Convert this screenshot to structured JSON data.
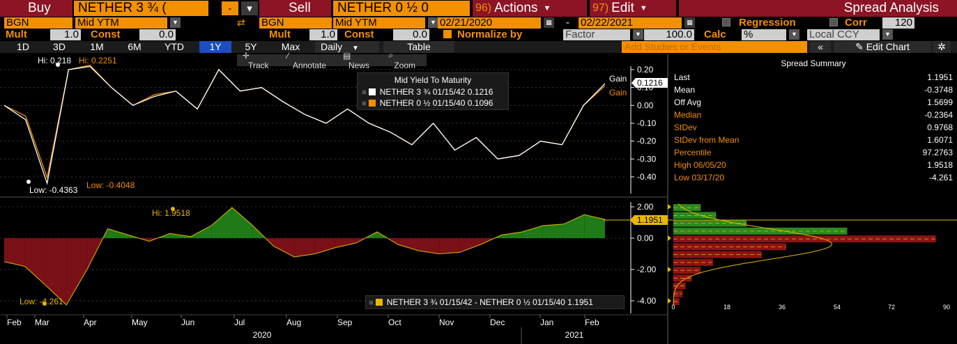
{
  "toolbar": {
    "buy_label": "Buy",
    "buy_security": "NETHER 3 ¾ (",
    "buy_side_btn": "-",
    "sell_label": "Sell",
    "sell_security": "NETHER 0 ½ 0",
    "actions_num": "96)",
    "actions_label": "Actions",
    "edit_num": "97)",
    "edit_label": "Edit",
    "title": "Spread Analysis"
  },
  "leg1": {
    "source": "BGN",
    "field": "Mid YTM",
    "mult_label": "Mult",
    "mult_value": "1.0",
    "const_label": "Const",
    "const_value": "0.0"
  },
  "leg2": {
    "source": "BGN",
    "field": "Mid YTM",
    "mult_label": "Mult",
    "mult_value": "1.0",
    "const_label": "Const",
    "const_value": "0.0"
  },
  "dates": {
    "start": "02/21/2020",
    "separator": "-",
    "end": "02/22/2021"
  },
  "options": {
    "regression_label": "Regression",
    "corr_label": "Corr",
    "corr_value": "120",
    "normalize_label": "Normalize by",
    "normalize_value": "Factor",
    "factor_value": "100.0",
    "calc_label": "Calc",
    "calc_value": "%",
    "ccy_value": "Local CCY"
  },
  "periods": [
    "1D",
    "3D",
    "1M",
    "6M",
    "YTD",
    "1Y",
    "5Y",
    "Max"
  ],
  "active_period": "1Y",
  "frequency": "Daily",
  "table_label": "Table",
  "add_studies_placeholder": "Add Studies or Events",
  "edit_chart_label": "Edit Chart",
  "tools": {
    "track": "Track",
    "annotate": "Annotate",
    "news": "News",
    "zoom": "Zoom"
  },
  "upper_legend": {
    "title": "Mid Yield To Maturity",
    "rows": [
      {
        "name": "NETHER 3 ¾ 01/15/42",
        "value": "0.1216",
        "color": "#ffffff"
      },
      {
        "name": "NETHER 0 ½ 01/15/40",
        "value": "0.1096",
        "color": "#f39000"
      }
    ]
  },
  "upper_annotations": {
    "hi_white": "Hi: 0.218",
    "hi_orange": "Hi: 0.2251",
    "low_white": "Low: -0.4363",
    "low_orange": "Low: -0.4048",
    "gain1": "Gain",
    "gain2": "Gain",
    "last_value": "0.1216"
  },
  "lower_annotations": {
    "hi": "Hi: 1.9518",
    "low": "Low: -4.261",
    "last_value": "1.1951",
    "legend": "NETHER 3 ¾ 01/15/42 - NETHER 0 ½ 01/15/40 1.1951"
  },
  "summary": {
    "title": "Spread Summary",
    "rows": [
      {
        "key": "Last",
        "value": "1.1951",
        "orange": false
      },
      {
        "key": "Mean",
        "value": "-0.3748",
        "orange": false
      },
      {
        "key": "Off Avg",
        "value": "1.5699",
        "orange": false
      },
      {
        "key": "Median",
        "value": "-0.2364",
        "orange": true
      },
      {
        "key": "StDev",
        "value": "0.9768",
        "orange": true
      },
      {
        "key": "StDev from Mean",
        "value": "1.6071",
        "orange": true
      },
      {
        "key": "Percentile",
        "value": "97.2763",
        "orange": true
      },
      {
        "key": "High 06/05/20",
        "value": "1.9518",
        "orange": true
      },
      {
        "key": "Low 03/17/20",
        "value": "-4.261",
        "orange": true
      }
    ]
  },
  "chart_data": [
    {
      "type": "line",
      "title": "Mid Yield To Maturity",
      "x": [
        "Feb",
        "Feb",
        "Mar",
        "Mar",
        "Mar",
        "Mar",
        "Apr",
        "Apr",
        "May",
        "May",
        "Jun",
        "Jun",
        "Jun",
        "Jul",
        "Jul",
        "Aug",
        "Aug",
        "Sep",
        "Sep",
        "Oct",
        "Oct",
        "Nov",
        "Nov",
        "Dec",
        "Dec",
        "Jan",
        "Jan",
        "Feb",
        "Feb"
      ],
      "series": [
        {
          "name": "NETHER 3 ¾ 01/15/42",
          "color": "#ffffff",
          "values": [
            0.0,
            -0.08,
            -0.4363,
            0.2,
            0.218,
            0.1,
            0.0,
            0.05,
            0.08,
            -0.02,
            0.2,
            0.08,
            0.1,
            0.02,
            -0.05,
            -0.1,
            -0.02,
            -0.1,
            -0.15,
            -0.22,
            -0.1,
            -0.25,
            -0.18,
            -0.3,
            -0.28,
            -0.2,
            -0.22,
            0.0,
            0.1216
          ]
        },
        {
          "name": "NETHER 0 ½ 01/15/40",
          "color": "#f39000",
          "values": [
            0.0,
            -0.06,
            -0.4048,
            0.2,
            0.2251,
            0.1,
            0.0,
            0.06,
            0.08,
            -0.02,
            0.2,
            0.08,
            0.1,
            0.02,
            -0.05,
            -0.1,
            -0.02,
            -0.1,
            -0.15,
            -0.22,
            -0.1,
            -0.25,
            -0.18,
            -0.3,
            -0.28,
            -0.2,
            -0.22,
            0.0,
            0.1096
          ]
        }
      ],
      "ylim": [
        -0.48,
        0.24
      ],
      "yticks": [
        "0.20",
        "0.10",
        "0.00",
        "-0.10",
        "-0.20",
        "-0.30",
        "-0.40"
      ]
    },
    {
      "type": "area",
      "series": [
        {
          "name": "NETHER 3 ¾ 01/15/42 - NETHER 0 ½ 01/15/40",
          "values": [
            -1.5,
            -1.8,
            -3.0,
            -4.261,
            -2.0,
            0.6,
            0.2,
            -0.2,
            0.3,
            0.1,
            0.8,
            1.9518,
            0.8,
            -0.5,
            -1.2,
            -1.0,
            -0.6,
            -0.3,
            0.4,
            -0.4,
            -0.8,
            -1.0,
            -0.9,
            -0.4,
            0.2,
            0.4,
            0.8,
            0.9,
            1.5,
            1.1951
          ]
        }
      ],
      "ylim": [
        -4.5,
        2.2
      ],
      "yticks": [
        "2.00",
        "0.00",
        "-2.00",
        "-4.00"
      ],
      "x_labels": [
        "Feb",
        "Mar",
        "Apr",
        "May",
        "Jun",
        "Jul",
        "Aug",
        "Sep",
        "Oct",
        "Nov",
        "Dec",
        "Jan",
        "Feb"
      ],
      "year_labels": [
        "2020",
        "2021"
      ]
    },
    {
      "type": "bar",
      "orientation": "horizontal",
      "xticks": [
        "0",
        "18",
        "36",
        "54",
        "72",
        "90"
      ],
      "bins": [
        {
          "center": 1.95,
          "count": 9,
          "color": "#2b8a1e"
        },
        {
          "center": 1.45,
          "count": 14,
          "color": "#2b8a1e"
        },
        {
          "center": 0.95,
          "count": 24,
          "color": "#2b8a1e"
        },
        {
          "center": 0.45,
          "count": 57,
          "color": "#2b8a1e"
        },
        {
          "center": -0.05,
          "count": 86,
          "color": "#8c1414"
        },
        {
          "center": -0.55,
          "count": 37,
          "color": "#8c1414"
        },
        {
          "center": -1.05,
          "count": 29,
          "color": "#8c1414"
        },
        {
          "center": -1.55,
          "count": 13,
          "color": "#8c1414"
        },
        {
          "center": -2.05,
          "count": 9,
          "color": "#8c1414"
        },
        {
          "center": -2.55,
          "count": 6,
          "color": "#8c1414"
        },
        {
          "center": -3.05,
          "count": 4,
          "color": "#8c1414"
        },
        {
          "center": -3.55,
          "count": 3,
          "color": "#8c1414"
        },
        {
          "center": -4.05,
          "count": 2,
          "color": "#8c1414"
        }
      ]
    }
  ]
}
